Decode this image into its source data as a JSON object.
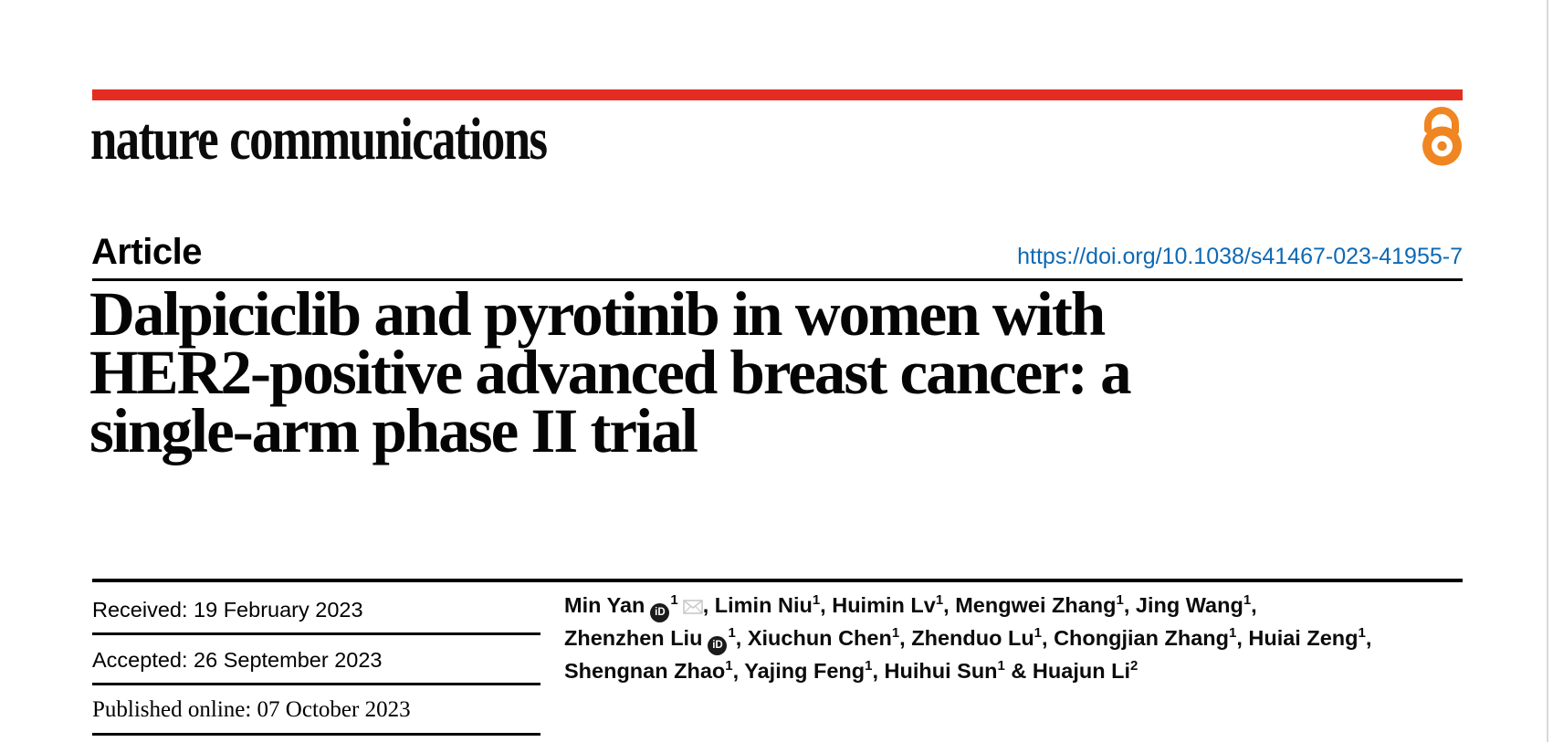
{
  "journal": {
    "name": "nature communications"
  },
  "colors": {
    "brand_red": "#e42d22",
    "oa_orange": "#ef8621",
    "link_blue": "#0d69b4",
    "envelope_gray": "#c9c9c9"
  },
  "article": {
    "type_label": "Article",
    "doi": "https://doi.org/10.1038/s41467-023-41955-7"
  },
  "title": {
    "line1": "Dalpiciclib and pyrotinib in women with",
    "line2": "HER2-positive advanced breast cancer: a",
    "line3": "single-arm phase II trial"
  },
  "dates": {
    "received": "Received: 19 February 2023",
    "accepted": "Accepted: 26 September 2023",
    "published": "Published online: 07 October 2023"
  },
  "icons": {
    "open_access": "open-access-padlock",
    "orcid": "orcid-id-badge",
    "orcid_text": "iD",
    "envelope": "email-envelope"
  },
  "authors": {
    "lines": [
      [
        {
          "name": "Min Yan",
          "orcid": true,
          "sup": "1",
          "env": true,
          "sep": ", "
        },
        {
          "name": "Limin Niu",
          "sup": "1",
          "sep": ", "
        },
        {
          "name": "Huimin Lv",
          "sup": "1",
          "sep": ", "
        },
        {
          "name": "Mengwei Zhang",
          "sup": "1",
          "sep": ", "
        },
        {
          "name": "Jing Wang",
          "sup": "1",
          "sep": ","
        }
      ],
      [
        {
          "name": "Zhenzhen Liu",
          "orcid": true,
          "sup": "1",
          "sep": ", "
        },
        {
          "name": "Xiuchun Chen",
          "sup": "1",
          "sep": ", "
        },
        {
          "name": "Zhenduo Lu",
          "sup": "1",
          "sep": ", "
        },
        {
          "name": "Chongjian Zhang",
          "sup": "1",
          "sep": ", "
        },
        {
          "name": "Huiai Zeng",
          "sup": "1",
          "sep": ","
        }
      ],
      [
        {
          "name": "Shengnan Zhao",
          "sup": "1",
          "sep": ", "
        },
        {
          "name": "Yajing Feng",
          "sup": "1",
          "sep": ", "
        },
        {
          "name": "Huihui Sun",
          "sup": "1",
          "sep": " & "
        },
        {
          "name": "Huajun Li",
          "sup": "2",
          "sep": ""
        }
      ]
    ]
  }
}
